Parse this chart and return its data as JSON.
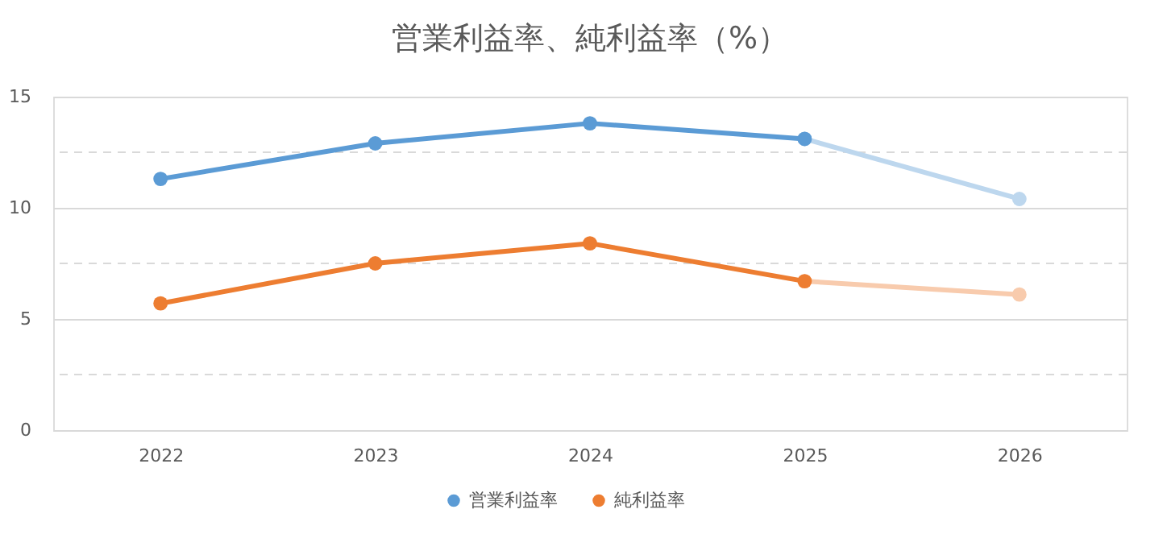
{
  "chart_data": {
    "type": "line",
    "title": "営業利益率、純利益率（%）",
    "categories": [
      "2022",
      "2023",
      "2024",
      "2025",
      "2026"
    ],
    "series": [
      {
        "color": "#bdd7ee",
        "values": [
          null,
          null,
          null,
          13.1,
          10.4
        ]
      },
      {
        "color": "#f8cbad",
        "values": [
          null,
          null,
          null,
          6.7,
          6.1
        ]
      },
      {
        "name": "営業利益率",
        "color": "#5b9bd5",
        "values": [
          11.3,
          12.9,
          13.8,
          13.1,
          null
        ]
      },
      {
        "name": "純利益率",
        "color": "#ed7d31",
        "values": [
          5.7,
          7.5,
          8.4,
          6.7,
          null
        ]
      }
    ],
    "ylim": [
      0,
      15
    ],
    "yticks": [
      0,
      {
        "value": 2.5,
        "label": null
      },
      5,
      {
        "value": 7.5,
        "label": null
      },
      10,
      {
        "value": 12.5,
        "label": null
      },
      15
    ],
    "grid": "y",
    "legend": "bottom",
    "marker": "circle",
    "line_style": "solid"
  }
}
